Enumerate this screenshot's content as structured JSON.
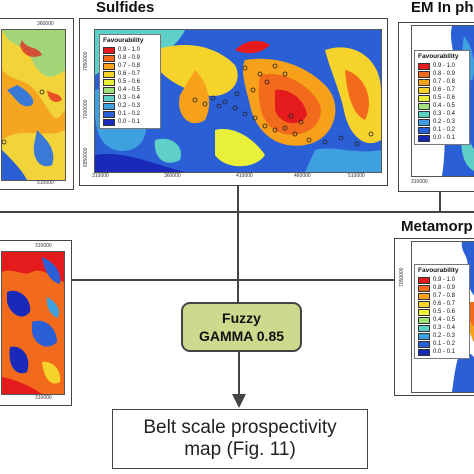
{
  "titles": {
    "sulfides": "Sulfides",
    "em": "EM In ph",
    "metamorphic": "Metamorp"
  },
  "legend_title": "Favourability",
  "legend_sulfides": [
    "0.9 - 1.0",
    "0.8 - 0.9",
    "0.7 - 0.8",
    "0.6 - 0.7",
    "0.5 - 0.6",
    "0.4 - 0.5",
    "0.3 - 0.4",
    "0.2 - 0.3",
    "0.1 - 0.2",
    "0.0 - 0.1"
  ],
  "legend_em": [
    "0.9 - 1.0",
    "0.8 - 0.9",
    "0.7 - 0.8",
    "0.6 - 0.7",
    "0.5 - 0.6",
    "0.4 - 0.5",
    "0.3 - 0.4",
    "0.2 - 0.3",
    "0.1 - 0.2",
    "0.0 - 0.1"
  ],
  "legend_meta": [
    "0.9 - 1.0",
    "0.8 - 0.9",
    "0.7 - 0.8",
    "0.6 - 0.7",
    "0.5 - 0.6",
    "0.4 - 0.5",
    "0.3 - 0.4",
    "0.2 - 0.3",
    "0.1 - 0.2",
    "0.0 - 0.1"
  ],
  "legend_colors": [
    "#e41a1c",
    "#f26b1d",
    "#f7a11a",
    "#f6d32b",
    "#e8f03a",
    "#9fe07a",
    "#5fd0c8",
    "#3fa0e0",
    "#2a5fd6",
    "#1a2ab8"
  ],
  "sulfides_ticks_x": [
    "310000",
    "360000",
    "410000",
    "460000",
    "510000"
  ],
  "sulfides_ticks_y": [
    "7050000",
    "7000000",
    "6950000"
  ],
  "left_top_tick_top": "360000",
  "left_top_tick_bottom": "510000",
  "left_bottom_tick_top": "310000",
  "left_bottom_tick_bottom": "310000",
  "em_tick_bottom": "310000",
  "meta_tick_y": "7050000",
  "fuzzy": {
    "line1": "Fuzzy",
    "line2": "GAMMA 0.85"
  },
  "result": {
    "line1": "Belt scale prospectivity",
    "line2": "map (Fig. 11)"
  }
}
